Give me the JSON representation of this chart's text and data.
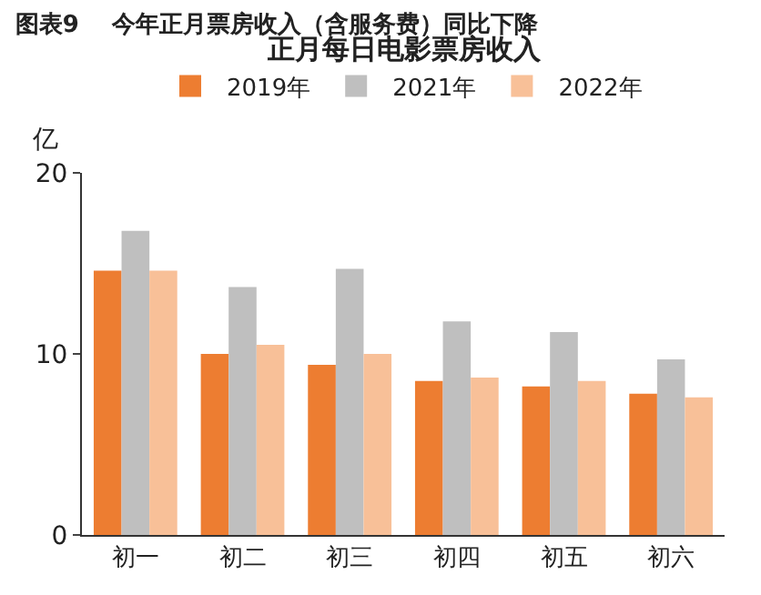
{
  "chart_data": {
    "type": "bar",
    "title": "图表9    今年正月票房收入（含服务费）同比下降",
    "subtitle": "正月每日电影票房收入",
    "ylabel": "亿",
    "categories": [
      "初一",
      "初二",
      "初三",
      "初四",
      "初五",
      "初六"
    ],
    "series": [
      {
        "name": "2019年",
        "color": "#ed7d31",
        "values": [
          14.6,
          10.0,
          9.4,
          8.5,
          8.2,
          7.8
        ]
      },
      {
        "name": "2021年",
        "color": "#bfbfbf",
        "values": [
          16.8,
          13.7,
          14.7,
          11.8,
          11.2,
          9.7
        ]
      },
      {
        "name": "2022年",
        "color": "#f8c098",
        "values": [
          14.6,
          10.5,
          10.0,
          8.7,
          8.5,
          7.6
        ]
      }
    ],
    "ylim": [
      0,
      20
    ],
    "yticks": [
      0,
      10,
      20
    ],
    "grid": false,
    "legend": "top"
  }
}
